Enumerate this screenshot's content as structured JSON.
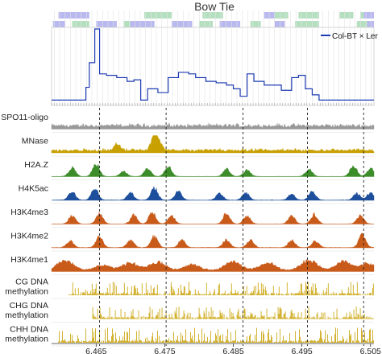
{
  "chart_data": {
    "type": "genome-track",
    "title": "Bow Tie",
    "legend": {
      "label": "Col-BT × Ler",
      "placement": "top-right"
    },
    "x_ticks": [
      "6.465",
      "6.475",
      "6.485",
      "6.495",
      "6.505"
    ],
    "x_range": [
      6.4585,
      6.5055
    ],
    "annotation_rows": {
      "top": {
        "color": "#b5e0c0",
        "segments": [
          [
            6.472,
            6.476
          ],
          [
            6.4805,
            6.4835
          ],
          [
            6.49,
            6.493
          ],
          [
            6.4945,
            6.4975
          ],
          [
            6.5005,
            6.5025
          ],
          [
            6.5035,
            6.5055
          ]
        ]
      },
      "upper": {
        "color": "#b9b9f0",
        "segments": [
          [
            6.4595,
            6.464
          ],
          [
            6.4895,
            6.491
          ],
          [
            6.504,
            6.5055
          ]
        ]
      },
      "lower": {
        "color": "#b9b9f0",
        "segments": [
          [
            6.4587,
            6.4605
          ],
          [
            6.465,
            6.468
          ],
          [
            6.47,
            6.4735
          ],
          [
            6.476,
            6.479
          ],
          [
            6.483,
            6.486
          ],
          [
            6.491,
            6.4925
          ],
          [
            6.5045,
            6.5055
          ]
        ]
      },
      "lower_green": {
        "color": "#b5e0c0",
        "segments": [
          [
            6.4615,
            6.464
          ],
          [
            6.469,
            6.47
          ],
          [
            6.48,
            6.482
          ],
          [
            6.4875,
            6.489
          ],
          [
            6.494,
            6.4975
          ],
          [
            6.503,
            6.5045
          ]
        ]
      }
    },
    "crossover_profile": {
      "color": "#1c3bb3",
      "x": [
        6.4585,
        6.4635,
        6.464,
        6.4648,
        6.4655,
        6.4665,
        6.468,
        6.4695,
        6.4705,
        6.4715,
        6.4725,
        6.474,
        6.4755,
        6.477,
        6.4785,
        6.4795,
        6.481,
        6.4825,
        6.484,
        6.485,
        6.486,
        6.487,
        6.488,
        6.4895,
        6.4905,
        6.492,
        6.4935,
        6.4945,
        6.4955,
        6.4965,
        6.4975,
        6.5055
      ],
      "y": [
        0.05,
        0.22,
        0.55,
        1.0,
        0.4,
        0.38,
        0.35,
        0.3,
        0.32,
        0.05,
        0.2,
        0.15,
        0.35,
        0.42,
        0.4,
        0.35,
        0.3,
        0.28,
        0.25,
        0.2,
        0.1,
        0.4,
        0.3,
        0.25,
        0.25,
        0.18,
        0.35,
        0.38,
        0.2,
        0.12,
        0.05,
        0.05
      ]
    },
    "dashed_markers": [
      6.4655,
      6.4752,
      6.4864,
      6.4958,
      6.504
    ],
    "tracks": [
      {
        "label": "SPO11-oligo",
        "color": "#999999",
        "profile": "noisy",
        "peaks": [],
        "start": 6.4585,
        "end": 6.5055,
        "baseline": 0.25
      },
      {
        "label": "MNase",
        "color": "#c8a000",
        "profile": "noisy",
        "peaks": [
          [
            6.4735,
            0.9
          ],
          [
            6.474,
            0.6
          ],
          [
            6.468,
            0.4
          ]
        ],
        "start": 6.4585,
        "end": 6.5055,
        "baseline": 0.18
      },
      {
        "label": "H2A.Z",
        "color": "#3c8c2a",
        "profile": "peaks",
        "peaks": [
          [
            6.4615,
            0.6
          ],
          [
            6.465,
            0.85
          ],
          [
            6.469,
            0.35
          ],
          [
            6.4725,
            0.55
          ],
          [
            6.4755,
            0.7
          ],
          [
            6.484,
            0.5
          ],
          [
            6.487,
            0.45
          ],
          [
            6.496,
            0.5
          ],
          [
            6.5025,
            0.75
          ],
          [
            6.505,
            0.55
          ]
        ],
        "start": 6.4585,
        "end": 6.5055,
        "baseline": 0.02
      },
      {
        "label": "H4K5ac",
        "color": "#1d4f9c",
        "profile": "peaks",
        "peaks": [
          [
            6.4615,
            0.55
          ],
          [
            6.4648,
            0.8
          ],
          [
            6.47,
            0.5
          ],
          [
            6.4735,
            0.85
          ],
          [
            6.477,
            0.6
          ],
          [
            6.483,
            0.45
          ],
          [
            6.4868,
            0.5
          ],
          [
            6.4935,
            0.4
          ],
          [
            6.4965,
            0.55
          ],
          [
            6.503,
            0.45
          ],
          [
            6.505,
            0.5
          ]
        ],
        "start": 6.4585,
        "end": 6.5055,
        "baseline": 0.03
      },
      {
        "label": "H3K4me3",
        "color": "#c85a1a",
        "profile": "peaks",
        "peaks": [
          [
            6.4615,
            0.55
          ],
          [
            6.4655,
            0.75
          ],
          [
            6.4705,
            0.6
          ],
          [
            6.4732,
            0.85
          ],
          [
            6.476,
            0.55
          ],
          [
            6.484,
            0.75
          ],
          [
            6.487,
            0.55
          ],
          [
            6.4935,
            0.55
          ],
          [
            6.4968,
            0.65
          ],
          [
            6.5035,
            0.6
          ]
        ],
        "start": 6.4585,
        "end": 6.5055,
        "baseline": 0.02
      },
      {
        "label": "H3K4me2",
        "color": "#c85a1a",
        "profile": "peaks",
        "peaks": [
          [
            6.4612,
            0.45
          ],
          [
            6.4655,
            0.75
          ],
          [
            6.47,
            0.55
          ],
          [
            6.4735,
            0.8
          ],
          [
            6.4775,
            0.5
          ],
          [
            6.484,
            0.55
          ],
          [
            6.4875,
            0.5
          ],
          [
            6.4935,
            0.5
          ],
          [
            6.497,
            0.45
          ],
          [
            6.5038,
            0.9
          ]
        ],
        "start": 6.4585,
        "end": 6.5055,
        "baseline": 0.03
      },
      {
        "label": "H3K4me1",
        "color": "#c85a1a",
        "profile": "broad",
        "peaks": [
          [
            6.4605,
            0.7
          ],
          [
            6.466,
            0.35
          ],
          [
            6.47,
            0.5
          ],
          [
            6.474,
            0.55
          ],
          [
            6.479,
            0.4
          ],
          [
            6.485,
            0.6
          ],
          [
            6.49,
            0.5
          ],
          [
            6.496,
            0.7
          ],
          [
            6.501,
            0.6
          ],
          [
            6.5045,
            0.45
          ]
        ],
        "start": 6.4585,
        "end": 6.5055,
        "baseline": 0.12
      },
      {
        "label": "CG DNA methylation",
        "color": "#c8a000",
        "profile": "sticks",
        "peaks": [],
        "start": 6.461,
        "end": 6.5055,
        "baseline": 0.5
      },
      {
        "label": "CHG DNA methylation",
        "color": "#c8a000",
        "profile": "sticks",
        "peaks": [],
        "start": 6.4645,
        "end": 6.5055,
        "baseline": 0.45
      },
      {
        "label": "CHH DNA methylation",
        "color": "#c8a000",
        "profile": "sticks",
        "peaks": [],
        "start": 6.4595,
        "end": 6.5055,
        "baseline": 0.55
      }
    ]
  }
}
